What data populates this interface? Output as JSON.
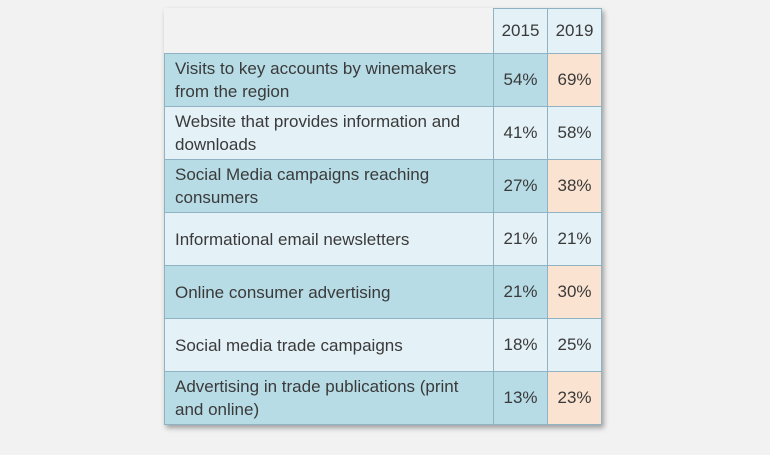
{
  "chart_data": {
    "type": "table",
    "columns": [
      "2015",
      "2019"
    ],
    "rows": [
      {
        "label": "Visits to key accounts by winemakers from the region",
        "v2015": "54%",
        "v2019": "69%"
      },
      {
        "label": "Website that provides information and downloads",
        "v2015": "41%",
        "v2019": "58%"
      },
      {
        "label": "Social Media campaigns reaching consumers",
        "v2015": "27%",
        "v2019": "38%"
      },
      {
        "label": "Informational email newsletters",
        "v2015": "21%",
        "v2019": "21%"
      },
      {
        "label": "Online consumer advertising",
        "v2015": "21%",
        "v2019": "30%"
      },
      {
        "label": "Social media trade campaigns",
        "v2015": "18%",
        "v2019": "25%"
      },
      {
        "label": "Advertising in trade publications (print and online)",
        "v2015": "13%",
        "v2019": "23%"
      }
    ]
  },
  "colors": {
    "background": "#f2f2f2",
    "row_dark": "#b7dce6",
    "row_light": "#e4f1f7",
    "highlight_2019": "#fbe3d1",
    "border": "#8fb3c3",
    "text": "#3a3a3a"
  }
}
